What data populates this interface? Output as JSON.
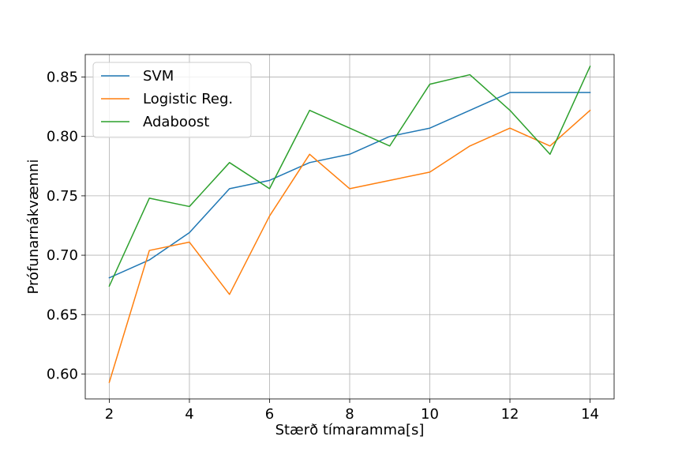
{
  "chart_data": {
    "type": "line",
    "title": "",
    "xlabel": "Stærð tímaramma[s]",
    "ylabel": "Prófunarnákvæmni",
    "xlim": [
      1.4,
      14.6
    ],
    "ylim": [
      0.579,
      0.869
    ],
    "xticks": [
      2,
      4,
      6,
      8,
      10,
      12,
      14
    ],
    "xtick_labels": [
      "2",
      "4",
      "6",
      "8",
      "10",
      "12",
      "14"
    ],
    "yticks": [
      0.6,
      0.65,
      0.7,
      0.75,
      0.8,
      0.85
    ],
    "ytick_labels": [
      "0.60",
      "0.65",
      "0.70",
      "0.75",
      "0.80",
      "0.85"
    ],
    "grid": true,
    "legend_position": "upper-left",
    "x": [
      2,
      3,
      4,
      5,
      6,
      7,
      8,
      9,
      10,
      11,
      12,
      13,
      14
    ],
    "series": [
      {
        "name": "SVM",
        "color": "#1f77b4",
        "values": [
          0.681,
          0.696,
          0.719,
          0.756,
          0.763,
          0.778,
          0.785,
          0.8,
          0.807,
          0.822,
          0.837,
          0.837,
          0.837
        ]
      },
      {
        "name": "Logistic Reg.",
        "color": "#ff7f0e",
        "values": [
          0.593,
          0.704,
          0.711,
          0.667,
          0.733,
          0.785,
          0.756,
          0.763,
          0.77,
          0.792,
          0.807,
          0.792,
          0.822
        ]
      },
      {
        "name": "Adaboost",
        "color": "#2ca02c",
        "values": [
          0.674,
          0.748,
          0.741,
          0.778,
          0.756,
          0.822,
          0.807,
          0.792,
          0.844,
          0.852,
          0.822,
          0.785,
          0.859
        ]
      }
    ]
  }
}
